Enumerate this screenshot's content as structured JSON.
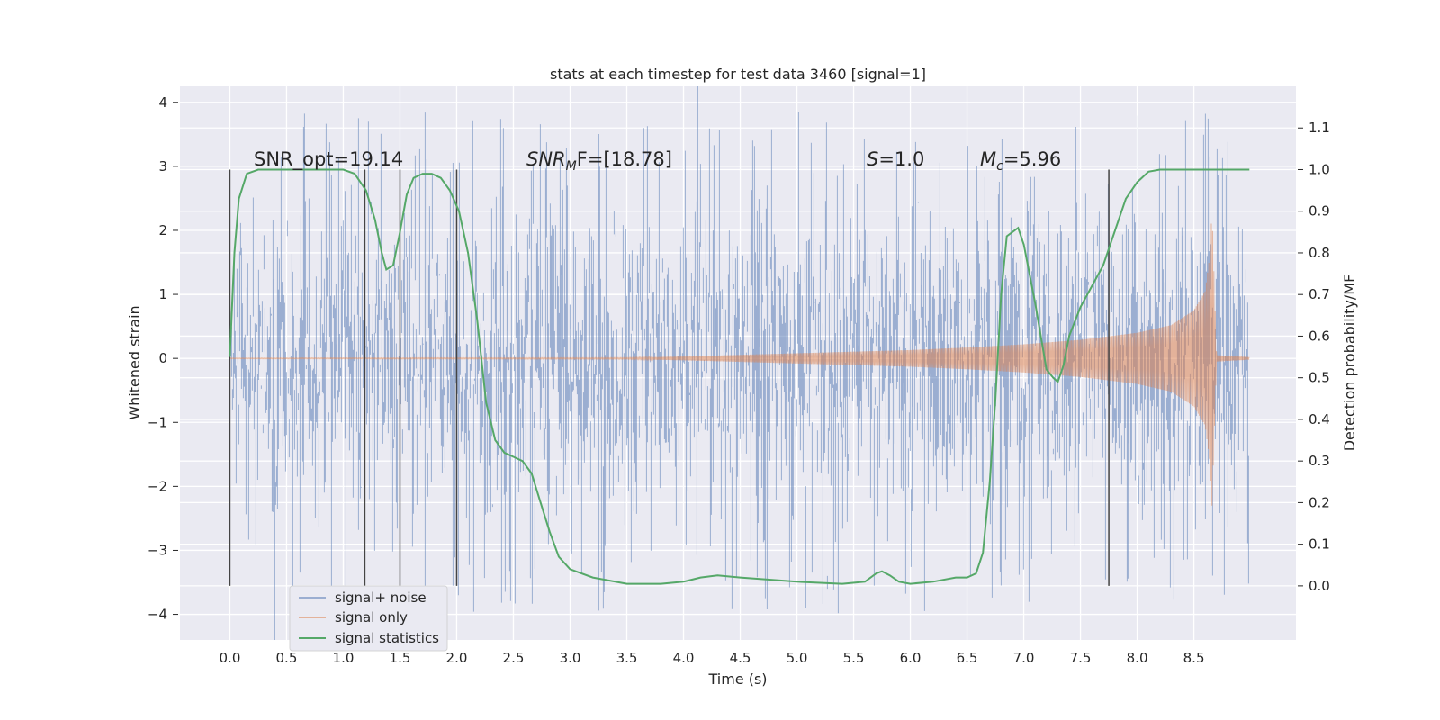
{
  "chart_data": {
    "type": "line",
    "title": "stats at each timestep for test data 3460 [signal=1]",
    "xlabel": "Time (s)",
    "ylabel": "Whitened strain",
    "ylabel_right": "Detection probability/MF",
    "xlim": [
      -0.44,
      9.4
    ],
    "ylim": [
      -4.4,
      4.25
    ],
    "ylim_right": [
      -0.13,
      1.2
    ],
    "x_ticks": [
      "0.0",
      "0.5",
      "1.0",
      "1.5",
      "2.0",
      "2.5",
      "3.0",
      "3.5",
      "4.0",
      "4.5",
      "5.0",
      "5.5",
      "6.0",
      "6.5",
      "7.0",
      "7.5",
      "8.0",
      "8.5"
    ],
    "y_ticks": [
      "4",
      "3",
      "2",
      "1",
      "0",
      "−1",
      "−2",
      "−3",
      "−4"
    ],
    "y_ticks_right": [
      "1.1",
      "1.0",
      "0.9",
      "0.8",
      "0.7",
      "0.6",
      "0.5",
      "0.4",
      "0.3",
      "0.2",
      "0.1",
      "0.0"
    ],
    "grid": true,
    "legend_position": "lower-left",
    "colors": {
      "signal_noise": "#4c72b0",
      "signal_only": "#dd8452",
      "statistics": "#55a868",
      "background": "#eaeaf2",
      "grid": "#ffffff",
      "vline": "#444444"
    },
    "series": [
      {
        "name": "signal+ noise",
        "x_range": [
          0.0,
          8.99
        ],
        "description_envelope": {
          "typical_abs": 1.2,
          "peaks_max": 3.85,
          "peaks_min": -4.0
        }
      },
      {
        "name": "signal only",
        "x_range": [
          0.0,
          8.99
        ],
        "amplitude_x": [
          0.0,
          3.5,
          4.0,
          5.0,
          6.0,
          6.5,
          7.0,
          7.5,
          8.0,
          8.3,
          8.5,
          8.6,
          8.64,
          8.66,
          8.7,
          8.99
        ],
        "amplitude_y": [
          0.005,
          0.01,
          0.03,
          0.08,
          0.13,
          0.17,
          0.22,
          0.29,
          0.4,
          0.52,
          0.75,
          1.05,
          1.6,
          2.3,
          0.05,
          0.02
        ]
      },
      {
        "name": "signal statistics",
        "x": [
          0.0,
          0.04,
          0.08,
          0.15,
          0.25,
          0.4,
          0.6,
          0.8,
          1.0,
          1.1,
          1.2,
          1.28,
          1.34,
          1.38,
          1.44,
          1.5,
          1.56,
          1.62,
          1.7,
          1.78,
          1.86,
          1.94,
          2.02,
          2.1,
          2.18,
          2.26,
          2.34,
          2.42,
          2.5,
          2.58,
          2.66,
          2.74,
          2.82,
          2.9,
          3.0,
          3.2,
          3.5,
          3.8,
          4.0,
          4.15,
          4.3,
          4.5,
          5.0,
          5.4,
          5.6,
          5.7,
          5.75,
          5.82,
          5.9,
          6.0,
          6.2,
          6.4,
          6.5,
          6.58,
          6.64,
          6.7,
          6.75,
          6.8,
          6.85,
          6.9,
          6.95,
          7.0,
          7.1,
          7.2,
          7.26,
          7.3,
          7.35,
          7.4,
          7.5,
          7.6,
          7.7,
          7.8,
          7.9,
          8.0,
          8.1,
          8.2,
          8.3,
          8.4,
          8.5,
          8.6,
          8.7,
          8.8,
          8.99
        ],
        "y": [
          0.55,
          0.8,
          0.93,
          0.99,
          1.0,
          1.0,
          1.0,
          1.0,
          1.0,
          0.99,
          0.95,
          0.88,
          0.8,
          0.76,
          0.77,
          0.85,
          0.94,
          0.98,
          0.99,
          0.99,
          0.98,
          0.95,
          0.9,
          0.8,
          0.64,
          0.44,
          0.35,
          0.32,
          0.31,
          0.3,
          0.27,
          0.2,
          0.13,
          0.07,
          0.04,
          0.02,
          0.005,
          0.005,
          0.01,
          0.02,
          0.025,
          0.02,
          0.01,
          0.005,
          0.01,
          0.03,
          0.035,
          0.025,
          0.01,
          0.005,
          0.01,
          0.02,
          0.02,
          0.03,
          0.08,
          0.25,
          0.45,
          0.7,
          0.84,
          0.85,
          0.86,
          0.82,
          0.68,
          0.52,
          0.5,
          0.49,
          0.53,
          0.6,
          0.67,
          0.72,
          0.77,
          0.85,
          0.93,
          0.97,
          0.995,
          1.0,
          1.0,
          1.0,
          1.0,
          1.0,
          1.0,
          1.0,
          1.0
        ]
      }
    ],
    "vlines_x": [
      0.0,
      1.19,
      1.5,
      2.0,
      7.75
    ],
    "annotations": [
      {
        "id": "snr-opt",
        "text": "SNR_opt=19.14",
        "x": 0.2,
        "y": 2.97
      },
      {
        "id": "snr-mf-prefix",
        "text": "SNR",
        "x": 2.6,
        "y": 2.97
      },
      {
        "id": "snr-mf-sub",
        "text": "M",
        "italic": true
      },
      {
        "id": "snr-mf-rest",
        "text": "F=[18.78]"
      },
      {
        "id": "s-stat-var",
        "text": "S",
        "x": 5.6,
        "y": 2.97
      },
      {
        "id": "s-stat-rest",
        "text": "=1.0"
      },
      {
        "id": "mc-var",
        "text": "M",
        "x": 6.6,
        "y": 2.97
      },
      {
        "id": "mc-sub",
        "text": "c"
      },
      {
        "id": "mc-rest",
        "text": "=5.96"
      }
    ]
  }
}
